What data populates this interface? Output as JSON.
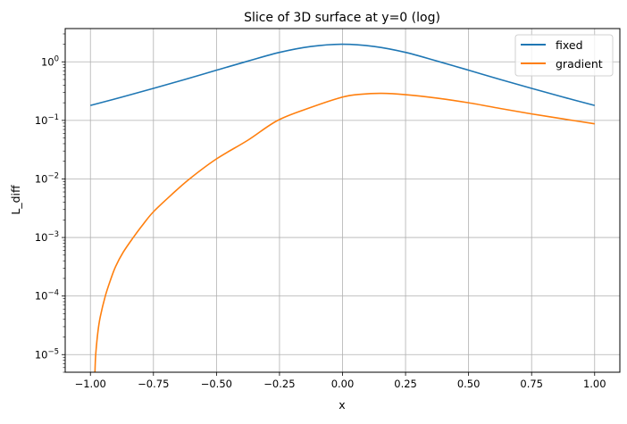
{
  "chart_data": {
    "type": "line",
    "title": "Slice of 3D surface at y=0 (log)",
    "xlabel": "x",
    "ylabel": "L_diff",
    "xlim": [
      -1.1,
      1.1
    ],
    "ylim": [
      5e-06,
      3.7
    ],
    "yscale": "log",
    "grid": true,
    "legend_position": "top-right",
    "xticks": [
      -1.0,
      -0.75,
      -0.5,
      -0.25,
      0.0,
      0.25,
      0.5,
      0.75,
      1.0
    ],
    "xtick_labels": [
      "−1.00",
      "−0.75",
      "−0.50",
      "−0.25",
      "0.00",
      "0.25",
      "0.50",
      "0.75",
      "1.00"
    ],
    "yticks": [
      1e-05,
      0.0001,
      0.001,
      0.01,
      0.1,
      1
    ],
    "ytick_labels": [
      "10^−5",
      "10^−4",
      "10^−3",
      "10^−2",
      "10^−1",
      "10^0"
    ],
    "series": [
      {
        "name": "fixed",
        "color": "#1f77b4",
        "x": [
          -1.0,
          -0.875,
          -0.75,
          -0.625,
          -0.5,
          -0.375,
          -0.25,
          -0.125,
          0.0,
          0.125,
          0.25,
          0.375,
          0.5,
          0.625,
          0.75,
          0.875,
          1.0
        ],
        "y": [
          0.18,
          0.25,
          0.352,
          0.5,
          0.72,
          1.03,
          1.45,
          1.83,
          2.0,
          1.83,
          1.45,
          1.03,
          0.72,
          0.5,
          0.352,
          0.25,
          0.18
        ]
      },
      {
        "name": "gradient",
        "color": "#ff7f0e",
        "x": [
          -0.982,
          -0.979,
          -0.97,
          -0.961,
          -0.941,
          -0.92,
          -0.9,
          -0.87,
          -0.83,
          -0.79,
          -0.75,
          -0.68,
          -0.607,
          -0.5,
          -0.375,
          -0.257,
          -0.125,
          0.0,
          0.075,
          0.156,
          0.25,
          0.375,
          0.5,
          0.625,
          0.75,
          0.875,
          1.0
        ],
        "y": [
          5e-06,
          1e-05,
          2.5e-05,
          4.4e-05,
          0.0001,
          0.00019,
          0.00032,
          0.00056,
          0.001,
          0.0017,
          0.00275,
          0.0053,
          0.01,
          0.022,
          0.046,
          0.1,
          0.167,
          0.25,
          0.28,
          0.29,
          0.275,
          0.24,
          0.2,
          0.16,
          0.129,
          0.106,
          0.0875
        ]
      }
    ]
  }
}
